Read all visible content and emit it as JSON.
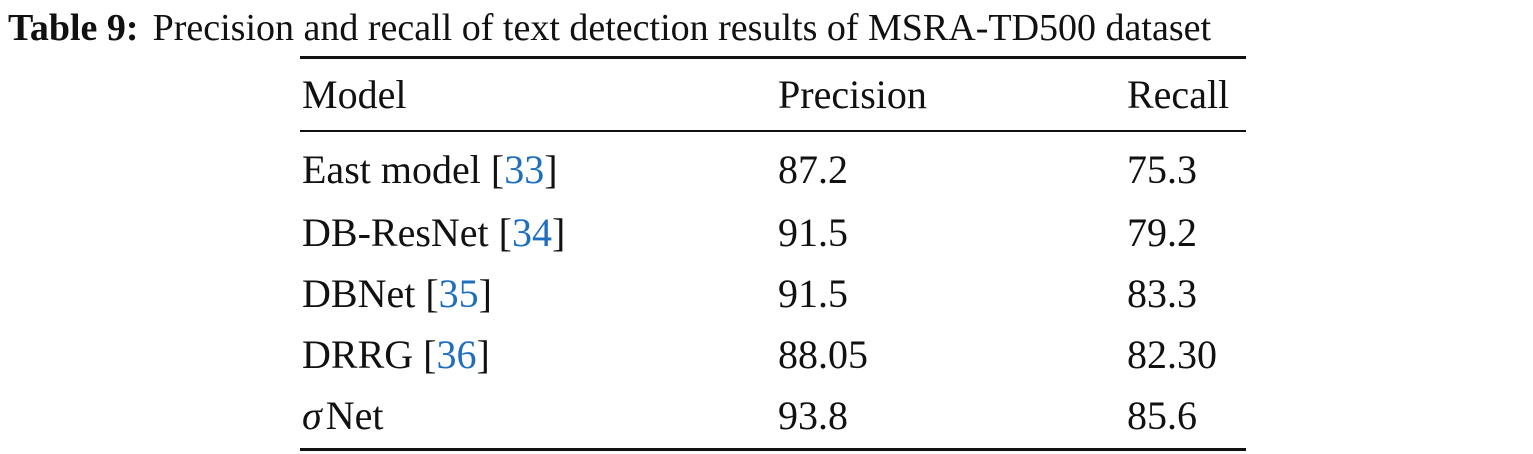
{
  "caption": {
    "label": "Table 9:",
    "text": "Precision and recall of text detection results of MSRA-TD500 dataset"
  },
  "table": {
    "header": [
      "Model",
      "Precision",
      "Recall"
    ],
    "rows": [
      {
        "model": {
          "name": "East model",
          "ref_open": "[",
          "ref": "33",
          "ref_close": "]"
        },
        "precision": "87.2",
        "recall": "75.3"
      },
      {
        "model": {
          "name": "DB-ResNet",
          "ref_open": "[",
          "ref": "34",
          "ref_close": "]"
        },
        "precision": "91.5",
        "recall": "79.2"
      },
      {
        "model": {
          "name": "DBNet",
          "ref_open": "[",
          "ref": "35",
          "ref_close": "]"
        },
        "precision": "91.5",
        "recall": "83.3"
      },
      {
        "model": {
          "name": "DRRG",
          "ref_open": "[",
          "ref": "36",
          "ref_close": "]"
        },
        "precision": "88.05",
        "recall": "82.30"
      },
      {
        "model": {
          "symbol": "σ",
          "name": "Net"
        },
        "precision": "93.8",
        "recall": "85.6"
      }
    ]
  }
}
